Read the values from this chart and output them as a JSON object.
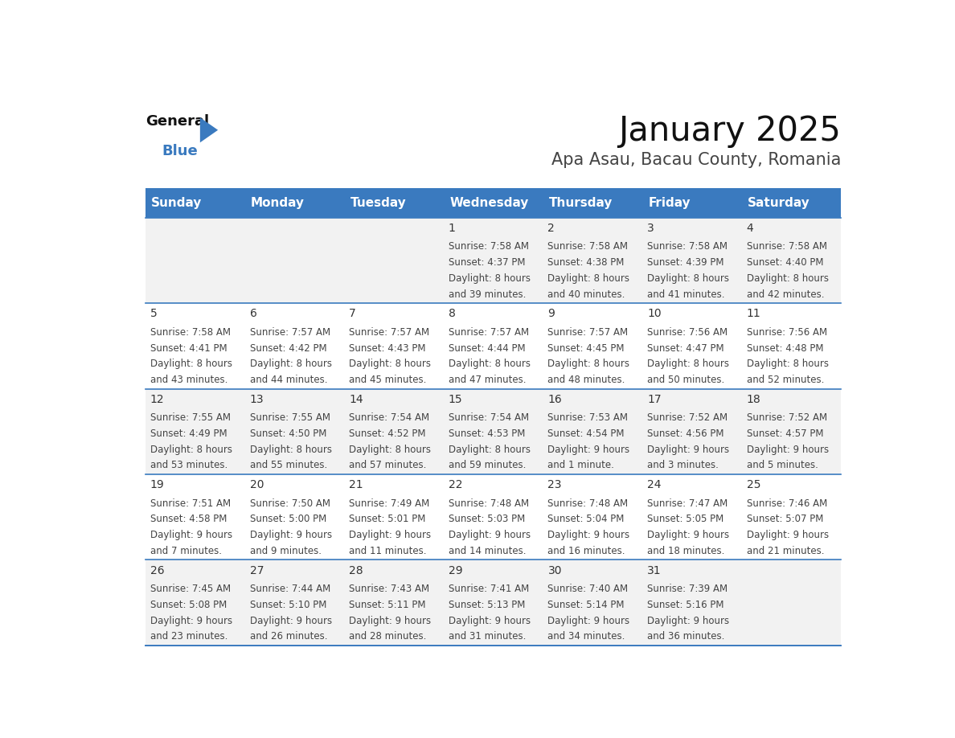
{
  "title": "January 2025",
  "subtitle": "Apa Asau, Bacau County, Romania",
  "days_of_week": [
    "Sunday",
    "Monday",
    "Tuesday",
    "Wednesday",
    "Thursday",
    "Friday",
    "Saturday"
  ],
  "header_bg": "#3a7abf",
  "header_text": "#ffffff",
  "cell_bg_odd": "#f2f2f2",
  "cell_bg_even": "#ffffff",
  "divider_color": "#3a7abf",
  "text_color": "#444444",
  "day_num_color": "#333333",
  "calendar_data": [
    [
      {
        "day": null,
        "sunrise": null,
        "sunset": null,
        "daylight_line1": null,
        "daylight_line2": null
      },
      {
        "day": null,
        "sunrise": null,
        "sunset": null,
        "daylight_line1": null,
        "daylight_line2": null
      },
      {
        "day": null,
        "sunrise": null,
        "sunset": null,
        "daylight_line1": null,
        "daylight_line2": null
      },
      {
        "day": 1,
        "sunrise": "7:58 AM",
        "sunset": "4:37 PM",
        "daylight_line1": "8 hours",
        "daylight_line2": "and 39 minutes."
      },
      {
        "day": 2,
        "sunrise": "7:58 AM",
        "sunset": "4:38 PM",
        "daylight_line1": "8 hours",
        "daylight_line2": "and 40 minutes."
      },
      {
        "day": 3,
        "sunrise": "7:58 AM",
        "sunset": "4:39 PM",
        "daylight_line1": "8 hours",
        "daylight_line2": "and 41 minutes."
      },
      {
        "day": 4,
        "sunrise": "7:58 AM",
        "sunset": "4:40 PM",
        "daylight_line1": "8 hours",
        "daylight_line2": "and 42 minutes."
      }
    ],
    [
      {
        "day": 5,
        "sunrise": "7:58 AM",
        "sunset": "4:41 PM",
        "daylight_line1": "8 hours",
        "daylight_line2": "and 43 minutes."
      },
      {
        "day": 6,
        "sunrise": "7:57 AM",
        "sunset": "4:42 PM",
        "daylight_line1": "8 hours",
        "daylight_line2": "and 44 minutes."
      },
      {
        "day": 7,
        "sunrise": "7:57 AM",
        "sunset": "4:43 PM",
        "daylight_line1": "8 hours",
        "daylight_line2": "and 45 minutes."
      },
      {
        "day": 8,
        "sunrise": "7:57 AM",
        "sunset": "4:44 PM",
        "daylight_line1": "8 hours",
        "daylight_line2": "and 47 minutes."
      },
      {
        "day": 9,
        "sunrise": "7:57 AM",
        "sunset": "4:45 PM",
        "daylight_line1": "8 hours",
        "daylight_line2": "and 48 minutes."
      },
      {
        "day": 10,
        "sunrise": "7:56 AM",
        "sunset": "4:47 PM",
        "daylight_line1": "8 hours",
        "daylight_line2": "and 50 minutes."
      },
      {
        "day": 11,
        "sunrise": "7:56 AM",
        "sunset": "4:48 PM",
        "daylight_line1": "8 hours",
        "daylight_line2": "and 52 minutes."
      }
    ],
    [
      {
        "day": 12,
        "sunrise": "7:55 AM",
        "sunset": "4:49 PM",
        "daylight_line1": "8 hours",
        "daylight_line2": "and 53 minutes."
      },
      {
        "day": 13,
        "sunrise": "7:55 AM",
        "sunset": "4:50 PM",
        "daylight_line1": "8 hours",
        "daylight_line2": "and 55 minutes."
      },
      {
        "day": 14,
        "sunrise": "7:54 AM",
        "sunset": "4:52 PM",
        "daylight_line1": "8 hours",
        "daylight_line2": "and 57 minutes."
      },
      {
        "day": 15,
        "sunrise": "7:54 AM",
        "sunset": "4:53 PM",
        "daylight_line1": "8 hours",
        "daylight_line2": "and 59 minutes."
      },
      {
        "day": 16,
        "sunrise": "7:53 AM",
        "sunset": "4:54 PM",
        "daylight_line1": "9 hours",
        "daylight_line2": "and 1 minute."
      },
      {
        "day": 17,
        "sunrise": "7:52 AM",
        "sunset": "4:56 PM",
        "daylight_line1": "9 hours",
        "daylight_line2": "and 3 minutes."
      },
      {
        "day": 18,
        "sunrise": "7:52 AM",
        "sunset": "4:57 PM",
        "daylight_line1": "9 hours",
        "daylight_line2": "and 5 minutes."
      }
    ],
    [
      {
        "day": 19,
        "sunrise": "7:51 AM",
        "sunset": "4:58 PM",
        "daylight_line1": "9 hours",
        "daylight_line2": "and 7 minutes."
      },
      {
        "day": 20,
        "sunrise": "7:50 AM",
        "sunset": "5:00 PM",
        "daylight_line1": "9 hours",
        "daylight_line2": "and 9 minutes."
      },
      {
        "day": 21,
        "sunrise": "7:49 AM",
        "sunset": "5:01 PM",
        "daylight_line1": "9 hours",
        "daylight_line2": "and 11 minutes."
      },
      {
        "day": 22,
        "sunrise": "7:48 AM",
        "sunset": "5:03 PM",
        "daylight_line1": "9 hours",
        "daylight_line2": "and 14 minutes."
      },
      {
        "day": 23,
        "sunrise": "7:48 AM",
        "sunset": "5:04 PM",
        "daylight_line1": "9 hours",
        "daylight_line2": "and 16 minutes."
      },
      {
        "day": 24,
        "sunrise": "7:47 AM",
        "sunset": "5:05 PM",
        "daylight_line1": "9 hours",
        "daylight_line2": "and 18 minutes."
      },
      {
        "day": 25,
        "sunrise": "7:46 AM",
        "sunset": "5:07 PM",
        "daylight_line1": "9 hours",
        "daylight_line2": "and 21 minutes."
      }
    ],
    [
      {
        "day": 26,
        "sunrise": "7:45 AM",
        "sunset": "5:08 PM",
        "daylight_line1": "9 hours",
        "daylight_line2": "and 23 minutes."
      },
      {
        "day": 27,
        "sunrise": "7:44 AM",
        "sunset": "5:10 PM",
        "daylight_line1": "9 hours",
        "daylight_line2": "and 26 minutes."
      },
      {
        "day": 28,
        "sunrise": "7:43 AM",
        "sunset": "5:11 PM",
        "daylight_line1": "9 hours",
        "daylight_line2": "and 28 minutes."
      },
      {
        "day": 29,
        "sunrise": "7:41 AM",
        "sunset": "5:13 PM",
        "daylight_line1": "9 hours",
        "daylight_line2": "and 31 minutes."
      },
      {
        "day": 30,
        "sunrise": "7:40 AM",
        "sunset": "5:14 PM",
        "daylight_line1": "9 hours",
        "daylight_line2": "and 34 minutes."
      },
      {
        "day": 31,
        "sunrise": "7:39 AM",
        "sunset": "5:16 PM",
        "daylight_line1": "9 hours",
        "daylight_line2": "and 36 minutes."
      },
      {
        "day": null,
        "sunrise": null,
        "sunset": null,
        "daylight_line1": null,
        "daylight_line2": null
      }
    ]
  ],
  "logo_color_general": "#111111",
  "logo_color_blue": "#3a7abf",
  "logo_triangle_color": "#3a7abf",
  "title_fontsize": 30,
  "subtitle_fontsize": 15,
  "header_fontsize": 11,
  "day_num_fontsize": 10,
  "cell_text_fontsize": 8.5
}
